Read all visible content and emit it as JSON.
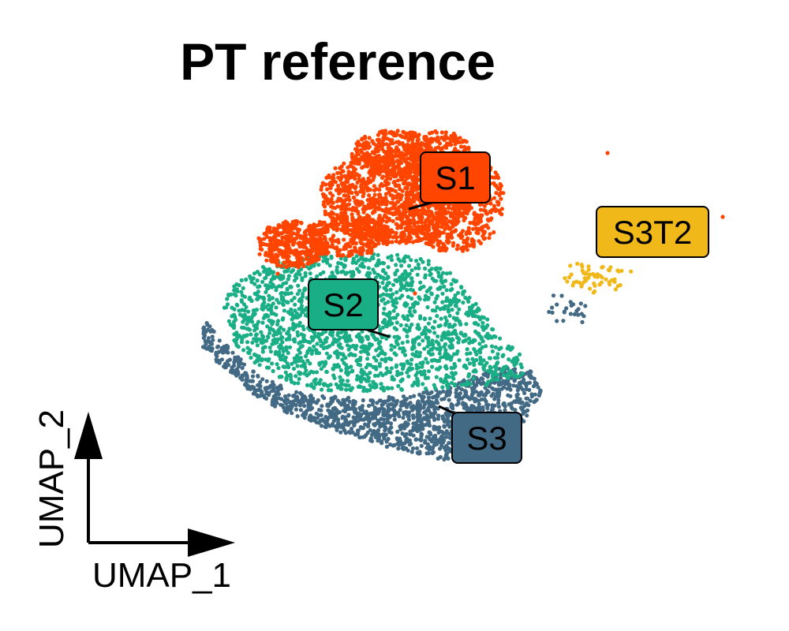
{
  "chart_data": {
    "type": "scatter",
    "title": "PT reference",
    "xlabel": "UMAP_1",
    "ylabel": "UMAP_2",
    "legend": "none",
    "grid": false,
    "clusters": [
      {
        "name": "S1",
        "label": "S1",
        "color": "#ff4500"
      },
      {
        "name": "S2",
        "label": "S2",
        "color": "#1aae86"
      },
      {
        "name": "S3",
        "label": "S3",
        "color": "#436a85"
      },
      {
        "name": "S3T2",
        "label": "S3T2",
        "color": "#f1b81a"
      }
    ]
  }
}
